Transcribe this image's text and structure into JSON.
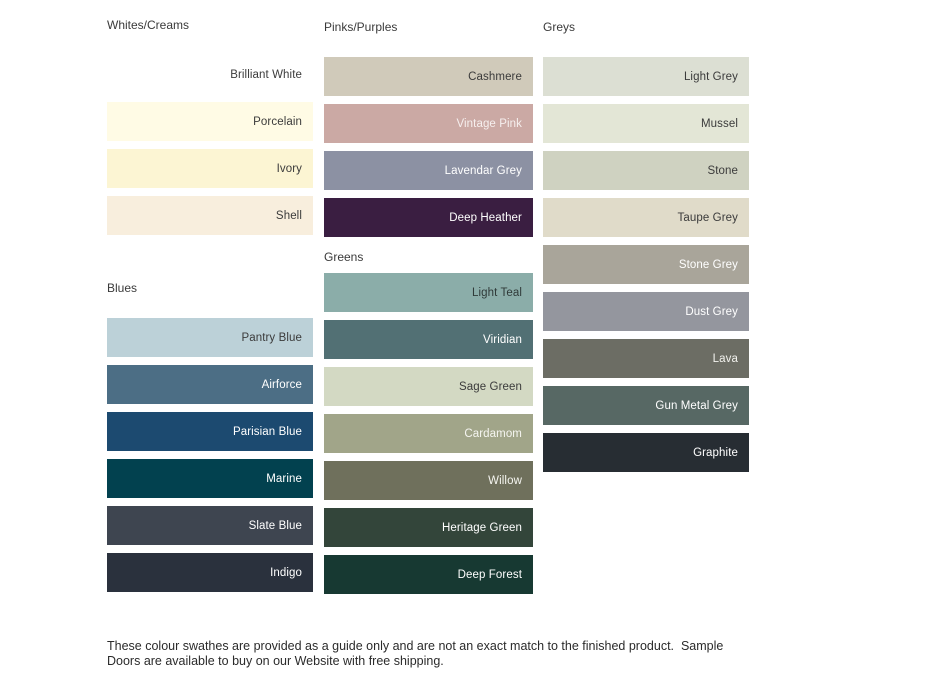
{
  "columns": [
    {
      "groups": [
        {
          "title": "Whites/Creams",
          "swatches": [
            {
              "name": "Brilliant White",
              "bg": "#ffffff",
              "text": "#3b3b3b"
            },
            {
              "name": "Porcelain",
              "bg": "#fffbe5",
              "text": "#3b3b3b"
            },
            {
              "name": "Ivory",
              "bg": "#fcf5d3",
              "text": "#3b3b3b"
            },
            {
              "name": "Shell",
              "bg": "#f8eedd",
              "text": "#3b3b3b"
            }
          ]
        },
        {
          "title": "Blues",
          "swatches": [
            {
              "name": "Pantry Blue",
              "bg": "#bcd1d8",
              "text": "#3b3b3b"
            },
            {
              "name": "Airforce",
              "bg": "#4c6e85",
              "text": "#ffffff"
            },
            {
              "name": "Parisian Blue",
              "bg": "#1c4a70",
              "text": "#ffffff"
            },
            {
              "name": "Marine",
              "bg": "#02414f",
              "text": "#ffffff"
            },
            {
              "name": "Slate Blue",
              "bg": "#3e4550",
              "text": "#ffffff"
            },
            {
              "name": "Indigo",
              "bg": "#2a313d",
              "text": "#ffffff"
            }
          ]
        }
      ]
    },
    {
      "groups": [
        {
          "title": "Pinks/Purples",
          "swatches": [
            {
              "name": "Cashmere",
              "bg": "#d0caba",
              "text": "#3b3b3b"
            },
            {
              "name": "Vintage Pink",
              "bg": "#cba9a4",
              "text": "#f6efee"
            },
            {
              "name": "Lavendar Grey",
              "bg": "#8c91a3",
              "text": "#ffffff"
            },
            {
              "name": "Deep Heather",
              "bg": "#3a1e41",
              "text": "#ffffff"
            }
          ]
        },
        {
          "title": "Greens",
          "swatches": [
            {
              "name": "Light Teal",
              "bg": "#8bada9",
              "text": "#303a39"
            },
            {
              "name": "Viridian",
              "bg": "#527074",
              "text": "#ffffff"
            },
            {
              "name": "Sage Green",
              "bg": "#d3d9c3",
              "text": "#3b3b3b"
            },
            {
              "name": "Cardamom",
              "bg": "#a1a589",
              "text": "#f5f5f0"
            },
            {
              "name": "Willow",
              "bg": "#6f705c",
              "text": "#f5f5f0"
            },
            {
              "name": "Heritage Green",
              "bg": "#33453a",
              "text": "#ffffff"
            },
            {
              "name": "Deep Forest",
              "bg": "#173932",
              "text": "#ffffff"
            }
          ]
        }
      ]
    },
    {
      "groups": [
        {
          "title": "Greys",
          "swatches": [
            {
              "name": "Light Grey",
              "bg": "#dcdfd3",
              "text": "#3b3b3b"
            },
            {
              "name": "Mussel",
              "bg": "#e3e6d6",
              "text": "#3b3b3b"
            },
            {
              "name": "Stone",
              "bg": "#cfd2c1",
              "text": "#3b3b3b"
            },
            {
              "name": "Taupe Grey",
              "bg": "#e0dbc9",
              "text": "#3b3b3b"
            },
            {
              "name": "Stone Grey",
              "bg": "#a9a59a",
              "text": "#ffffff"
            },
            {
              "name": "Dust Grey",
              "bg": "#94969e",
              "text": "#ffffff"
            },
            {
              "name": "Lava",
              "bg": "#6c6d64",
              "text": "#f2f2ee"
            },
            {
              "name": "Gun Metal Grey",
              "bg": "#576864",
              "text": "#ffffff"
            },
            {
              "name": "Graphite",
              "bg": "#272d33",
              "text": "#ffffff"
            }
          ]
        }
      ]
    }
  ],
  "footer": {
    "line1": "These colour swathes are provided as a guide only and are not an exact match to the finished product.  Sample",
    "line2": "Doors are available to buy on our Website with free shipping."
  }
}
